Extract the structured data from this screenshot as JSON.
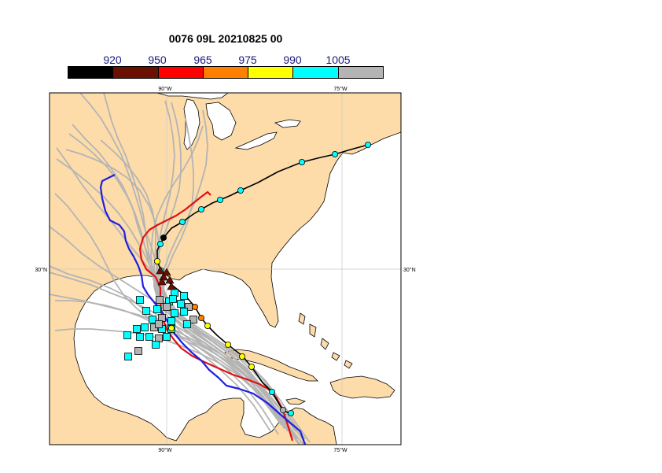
{
  "title": "0076 09L 20210825 00",
  "colorbar": {
    "labels": [
      "920",
      "950",
      "965",
      "975",
      "990",
      "1005"
    ],
    "colors": [
      "#000000",
      "#6b0f00",
      "#ff0000",
      "#ff8000",
      "#ffff00",
      "#00ffff",
      "#b4b4b4"
    ]
  },
  "axes": {
    "top_ticks": [
      "90°W",
      "75°W"
    ],
    "bottom_ticks": [
      "90°W",
      "75°W"
    ],
    "left_ticks": [
      "30°N"
    ],
    "right_ticks": [
      "30°N"
    ]
  },
  "colors": {
    "land": "#fddcaa",
    "ocean": "#ffffff",
    "ensemble_track": "#b4b4b4",
    "red_track": "#e01010",
    "blue_track": "#1e1ee6",
    "best_track": "#000000"
  }
}
